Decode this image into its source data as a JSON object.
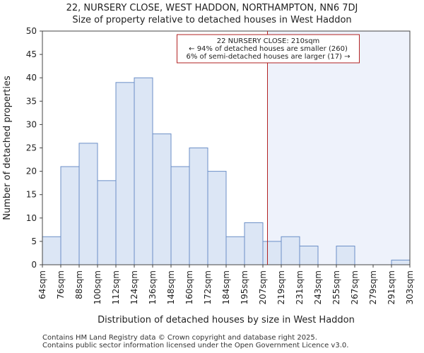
{
  "header": {
    "title": "22, NURSERY CLOSE, WEST HADDON, NORTHAMPTON, NN6 7DJ",
    "subtitle": "Size of property relative to detached houses in West Haddon"
  },
  "footer": {
    "line1": "Contains HM Land Registry data © Crown copyright and database right 2025.",
    "line2": "Contains public sector information licensed under the Open Government Licence v3.0."
  },
  "chart_data": {
    "type": "bar",
    "title": "22, NURSERY CLOSE, WEST HADDON, NORTHAMPTON, NN6 7DJ",
    "subtitle": "Size of property relative to detached houses in West Haddon",
    "xlabel": "Distribution of detached houses by size in West Haddon",
    "ylabel": "Number of detached properties",
    "categories": [
      "64sqm",
      "76sqm",
      "88sqm",
      "100sqm",
      "112sqm",
      "124sqm",
      "136sqm",
      "148sqm",
      "160sqm",
      "172sqm",
      "184sqm",
      "195sqm",
      "207sqm",
      "219sqm",
      "231sqm",
      "243sqm",
      "255sqm",
      "267sqm",
      "279sqm",
      "291sqm",
      "303sqm"
    ],
    "values": [
      6,
      21,
      26,
      18,
      39,
      40,
      28,
      21,
      25,
      20,
      6,
      9,
      5,
      6,
      4,
      0,
      4,
      0,
      0,
      1,
      0
    ],
    "ylim": [
      0,
      50
    ],
    "yticks": [
      0,
      5,
      10,
      15,
      20,
      25,
      30,
      35,
      40,
      45,
      50
    ],
    "grid": false,
    "marker": {
      "value_sqm": 210,
      "bin_position": 12.25,
      "color": "#b22222",
      "label_lines": [
        "22 NURSERY CLOSE: 210sqm",
        "← 94% of detached houses are smaller (260)",
        "6% of semi-detached houses are larger (17) →"
      ]
    },
    "colors": {
      "bar_fill": "#dce6f5",
      "bar_edge": "#6b8fc7",
      "highlight_fill": "#eef2fb"
    }
  }
}
